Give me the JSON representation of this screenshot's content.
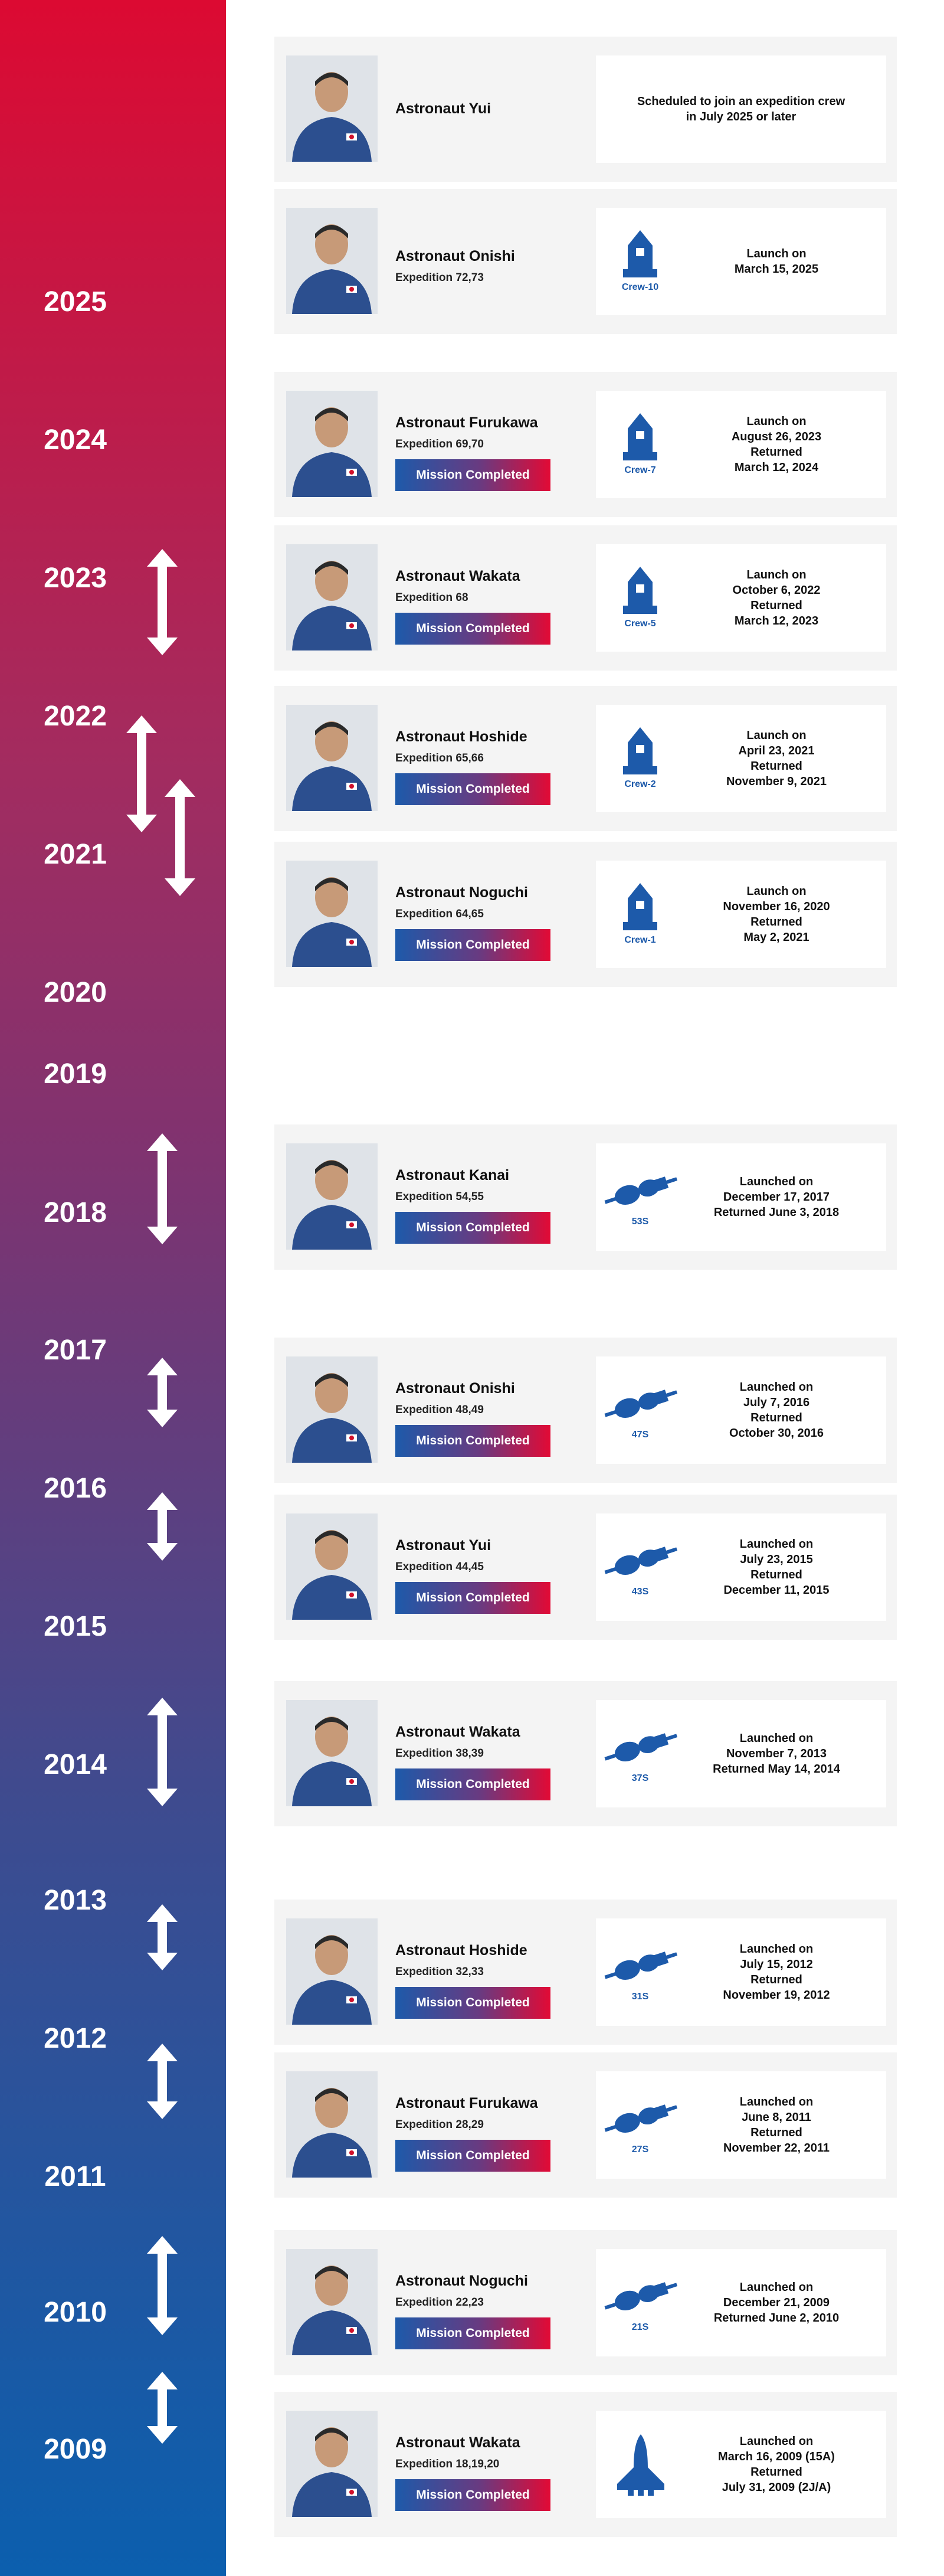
{
  "years": [
    "2025",
    "2024",
    "2023",
    "2022",
    "2021",
    "2020",
    "2019",
    "2018",
    "2017",
    "2016",
    "2015",
    "2014",
    "2013",
    "2012",
    "2011",
    "2010",
    "2009"
  ],
  "badge_label": "Mission Completed",
  "colors": {
    "top": "#dc0a32",
    "bottom": "#0b5fae",
    "accent_blue": "#1d5aaa",
    "accent_red": "#e20a35",
    "card_bg": "#f4f4f4"
  },
  "cards": [
    {
      "name": "Astronaut Yui",
      "expedition": "",
      "completed": false,
      "craft": "none",
      "craft_label": "",
      "lines": [
        "Scheduled to join an expedition crew",
        "in July 2025 or later"
      ]
    },
    {
      "name": "Astronaut Onishi",
      "expedition": "Expedition 72,73",
      "completed": false,
      "craft": "dragon",
      "craft_label": "Crew-10",
      "lines": [
        "Launch on",
        "March 15, 2025"
      ]
    },
    {
      "name": "Astronaut Furukawa",
      "expedition": "Expedition 69,70",
      "completed": true,
      "craft": "dragon",
      "craft_label": "Crew-7",
      "lines": [
        "Launch on",
        "August 26, 2023",
        "Returned",
        "March 12, 2024"
      ]
    },
    {
      "name": "Astronaut Wakata",
      "expedition": "Expedition 68",
      "completed": true,
      "craft": "dragon",
      "craft_label": "Crew-5",
      "lines": [
        "Launch on",
        "October 6, 2022",
        "Returned",
        "March 12, 2023"
      ]
    },
    {
      "name": "Astronaut Hoshide",
      "expedition": "Expedition 65,66",
      "completed": true,
      "craft": "dragon",
      "craft_label": "Crew-2",
      "lines": [
        "Launch on",
        "April 23, 2021",
        "Returned",
        "November 9, 2021"
      ]
    },
    {
      "name": "Astronaut Noguchi",
      "expedition": "Expedition 64,65",
      "completed": true,
      "craft": "dragon",
      "craft_label": "Crew-1",
      "lines": [
        "Launch on",
        "November 16, 2020",
        "Returned",
        "May 2, 2021"
      ]
    },
    {
      "name": "Astronaut Kanai",
      "expedition": "Expedition 54,55",
      "completed": true,
      "craft": "soyuz",
      "craft_label": "53S",
      "lines": [
        "Launched on",
        "December 17, 2017",
        "Returned June 3, 2018"
      ]
    },
    {
      "name": "Astronaut Onishi",
      "expedition": "Expedition 48,49",
      "completed": true,
      "craft": "soyuz",
      "craft_label": "47S",
      "lines": [
        "Launched on",
        "July 7, 2016",
        "Returned",
        "October 30, 2016"
      ]
    },
    {
      "name": "Astronaut Yui",
      "expedition": "Expedition 44,45",
      "completed": true,
      "craft": "soyuz",
      "craft_label": "43S",
      "lines": [
        "Launched on",
        "July 23, 2015",
        "Returned",
        "December 11, 2015"
      ]
    },
    {
      "name": "Astronaut Wakata",
      "expedition": "Expedition 38,39",
      "completed": true,
      "craft": "soyuz",
      "craft_label": "37S",
      "lines": [
        "Launched on",
        "November 7, 2013",
        "Returned May 14, 2014"
      ]
    },
    {
      "name": "Astronaut Hoshide",
      "expedition": "Expedition 32,33",
      "completed": true,
      "craft": "soyuz",
      "craft_label": "31S",
      "lines": [
        "Launched on",
        "July 15, 2012",
        "Returned",
        "November 19, 2012"
      ]
    },
    {
      "name": "Astronaut Furukawa",
      "expedition": "Expedition 28,29",
      "completed": true,
      "craft": "soyuz",
      "craft_label": "27S",
      "lines": [
        "Launched on",
        "June 8, 2011",
        "Returned",
        "November 22, 2011"
      ]
    },
    {
      "name": "Astronaut Noguchi",
      "expedition": "Expedition 22,23",
      "completed": true,
      "craft": "soyuz",
      "craft_label": "21S",
      "lines": [
        "Launched on",
        "December 21, 2009",
        "Returned June 2, 2010"
      ]
    },
    {
      "name": "Astronaut Wakata",
      "expedition": "Expedition 18,19,20",
      "completed": true,
      "craft": "shuttle",
      "craft_label": "",
      "lines": [
        "Launched on",
        "March 16, 2009 (15A)",
        "Returned",
        "July 31, 2009 (2J/A)"
      ]
    }
  ]
}
